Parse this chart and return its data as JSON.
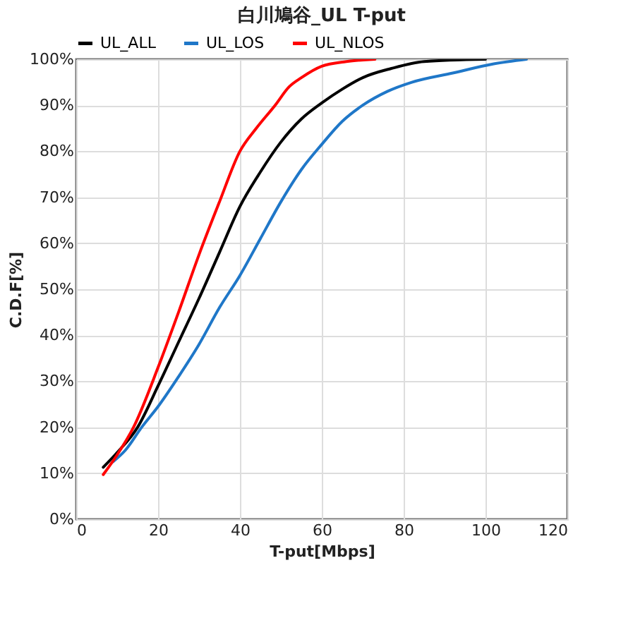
{
  "chart_data": {
    "type": "line",
    "title": "白川鳩谷_UL T-put",
    "xlabel": "T-put[Mbps]",
    "ylabel": "C.D.F[%]",
    "xlim": [
      0,
      120
    ],
    "xticks": [
      0,
      20,
      40,
      60,
      80,
      100,
      120
    ],
    "ylim": [
      0,
      100
    ],
    "yticks": [
      {
        "value": 0,
        "label": "0%"
      },
      {
        "value": 10,
        "label": "10%"
      },
      {
        "value": 20,
        "label": "20%"
      },
      {
        "value": 30,
        "label": "30%"
      },
      {
        "value": 40,
        "label": "40%"
      },
      {
        "value": 50,
        "label": "50%"
      },
      {
        "value": 60,
        "label": "60%"
      },
      {
        "value": 70,
        "label": "70%"
      },
      {
        "value": 80,
        "label": "80%"
      },
      {
        "value": 90,
        "label": "90%"
      },
      {
        "value": 100,
        "label": "100%"
      }
    ],
    "grid": true,
    "legend": "top",
    "marker": "none",
    "line_style": "solid",
    "series": [
      {
        "name": "UL_ALL",
        "color": "#000000",
        "x": [
          6.6,
          10,
          15,
          20,
          25,
          30,
          35,
          40,
          45,
          50,
          55,
          60,
          65,
          70,
          77,
          85,
          100
        ],
        "values": [
          11.3,
          14.5,
          20,
          29,
          38.5,
          48,
          58,
          68,
          75.5,
          82,
          87,
          90.5,
          93.5,
          96,
          98,
          99.5,
          100
        ]
      },
      {
        "name": "UL_LOS",
        "color": "#1f77c8",
        "x": [
          9,
          12,
          16,
          20,
          25,
          30,
          35,
          40,
          45,
          50,
          55,
          60,
          65,
          70,
          76,
          82,
          92,
          102,
          110
        ],
        "values": [
          12.5,
          15,
          20,
          24.5,
          31,
          38,
          46,
          53,
          61,
          69,
          76,
          81.5,
          86.5,
          90,
          93,
          95,
          97,
          99,
          100
        ]
      },
      {
        "name": "UL_NLOS",
        "color": "#ff0000",
        "x": [
          6.6,
          10,
          14,
          20,
          25,
          30,
          35,
          40,
          44,
          48.6,
          52,
          55,
          60,
          66,
          73
        ],
        "values": [
          9.7,
          14,
          20,
          33,
          45,
          57.5,
          69,
          80,
          85,
          90,
          94,
          96,
          98.5,
          99.5,
          100
        ]
      }
    ]
  }
}
